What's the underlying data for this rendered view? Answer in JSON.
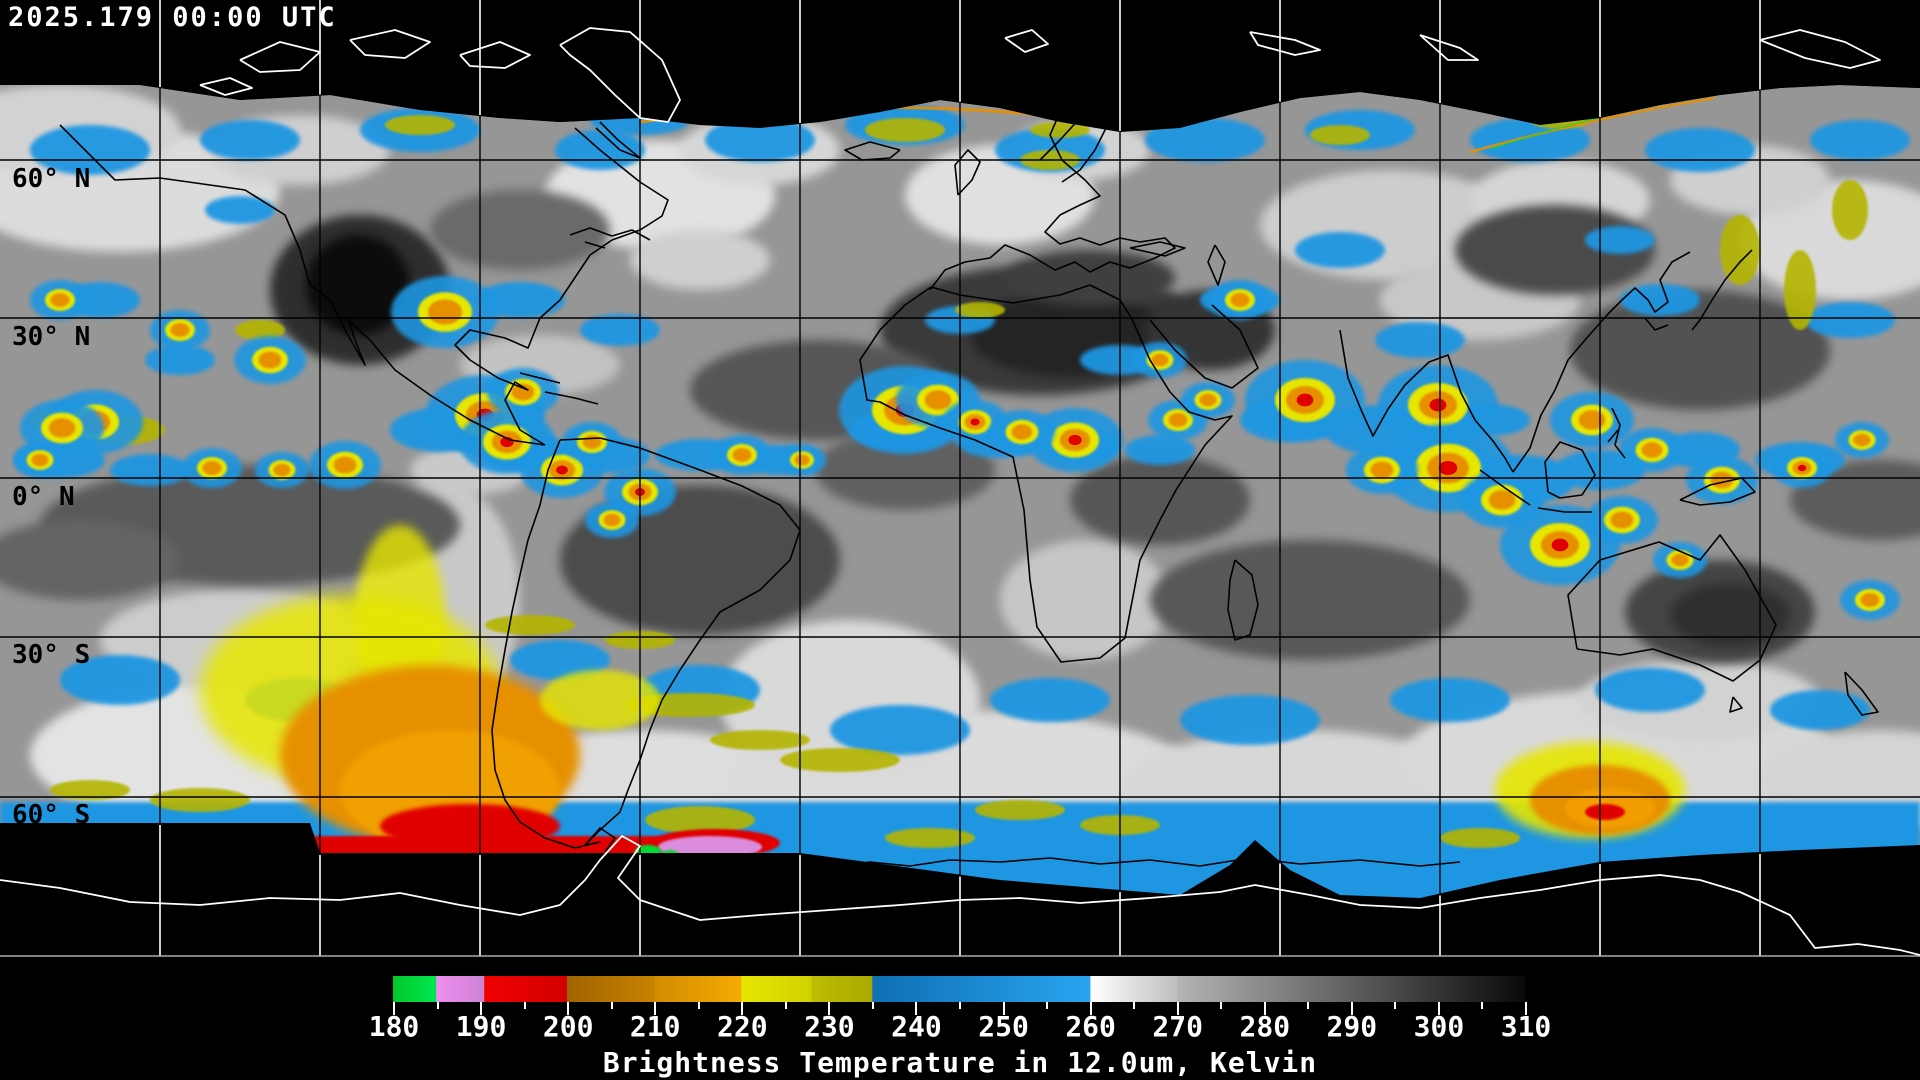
{
  "header": {
    "timestamp": "2025.179 00:00 UTC"
  },
  "map": {
    "projection": "equirectangular",
    "latitude_labels": [
      {
        "label": "60° N"
      },
      {
        "label": "30° N"
      },
      {
        "label": "0° N"
      },
      {
        "label": "30° S"
      },
      {
        "label": "60° S"
      }
    ]
  },
  "colorbar": {
    "min": 180,
    "max": 310,
    "major_step": 10,
    "minor_step": 5,
    "tick_labels": [
      "180",
      "190",
      "200",
      "210",
      "220",
      "230",
      "240",
      "250",
      "260",
      "270",
      "280",
      "290",
      "300",
      "310"
    ],
    "caption": "Brightness Temperature in 12.0um, Kelvin",
    "stops": [
      {
        "value": 180.0,
        "color": "#00c828"
      },
      {
        "value": 184.9,
        "color": "#00e650"
      },
      {
        "value": 185.0,
        "color": "#f08cf0"
      },
      {
        "value": 190.4,
        "color": "#cc84d4"
      },
      {
        "value": 190.5,
        "color": "#ef0000"
      },
      {
        "value": 199.9,
        "color": "#d40000"
      },
      {
        "value": 200.0,
        "color": "#a06400"
      },
      {
        "value": 209.9,
        "color": "#c88200"
      },
      {
        "value": 210.0,
        "color": "#d28c00"
      },
      {
        "value": 219.9,
        "color": "#f5aa00"
      },
      {
        "value": 220.0,
        "color": "#e6e600"
      },
      {
        "value": 227.9,
        "color": "#d2d200"
      },
      {
        "value": 228.0,
        "color": "#bebe00"
      },
      {
        "value": 234.9,
        "color": "#a8a800"
      },
      {
        "value": 235.0,
        "color": "#0f6fb4"
      },
      {
        "value": 259.9,
        "color": "#28a5f0"
      },
      {
        "value": 260.0,
        "color": "#ffffff"
      },
      {
        "value": 269.9,
        "color": "#bebebe"
      },
      {
        "value": 270.0,
        "color": "#b4b4b4"
      },
      {
        "value": 309.5,
        "color": "#0a0a0a"
      },
      {
        "value": 310.0,
        "color": "#000000"
      }
    ]
  },
  "palette": {
    "background": "#000000",
    "imagery_base": "#969696",
    "cloud_blue": "#1e96e1",
    "cloud_yellow": "#e6e600",
    "cloud_olive": "#b4b400",
    "cloud_orange": "#e69000",
    "cloud_red": "#e10000",
    "cloud_violet": "#dc8cdc",
    "cloud_green": "#00dc32",
    "coast_dark": "#000000",
    "coast_light": "#ffffff",
    "grid_dark": "#000000",
    "grid_light": "#ffffff",
    "separator": "#aaaaaa"
  }
}
